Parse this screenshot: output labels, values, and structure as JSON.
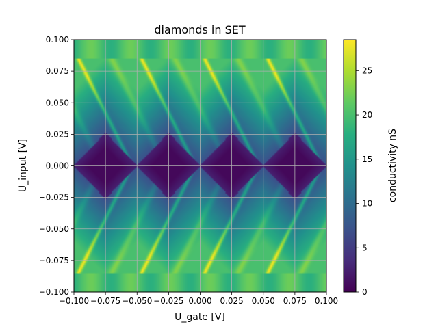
{
  "chart_data": {
    "type": "heatmap",
    "title": "diamonds in SET",
    "xlabel": "U_gate [V]",
    "ylabel": "U_input [V]",
    "xlim": [
      -0.1,
      0.1
    ],
    "ylim": [
      -0.1,
      0.1
    ],
    "x_ticks": [
      "−0.100",
      "−0.075",
      "−0.050",
      "−0.025",
      "0.000",
      "0.025",
      "0.050",
      "0.075",
      "0.100"
    ],
    "y_ticks": [
      "−0.100",
      "−0.075",
      "−0.050",
      "−0.025",
      "0.000",
      "0.025",
      "0.050",
      "0.075",
      "0.100"
    ],
    "grid": true,
    "colormap": "viridis",
    "colorbar": {
      "label": "conductivity nS",
      "range": [
        0,
        28.5
      ],
      "ticks": [
        "0",
        "5",
        "10",
        "15",
        "20",
        "25"
      ]
    },
    "diamond_period_V": 0.05,
    "diamond_centers_gate_V": [
      -0.075,
      -0.025,
      0.025,
      0.075
    ],
    "charging_voltage_V": 0.025,
    "z_range_nS": [
      0,
      28.5
    ]
  }
}
